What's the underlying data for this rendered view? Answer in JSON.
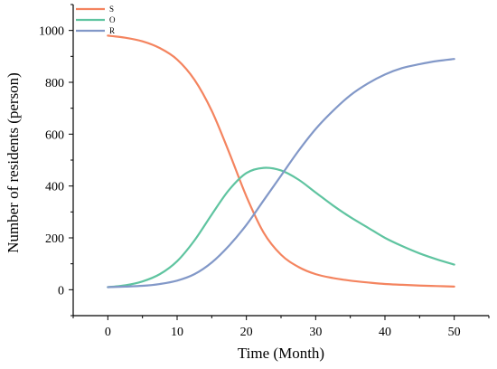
{
  "chart_data": {
    "type": "line",
    "title": "",
    "xlabel": "Time (Month)",
    "ylabel": "Number of residents (person)",
    "xlim": [
      -5,
      55
    ],
    "ylim": [
      -100,
      1100
    ],
    "x_ticks": [
      0,
      10,
      20,
      30,
      40,
      50
    ],
    "y_ticks": [
      0,
      200,
      400,
      600,
      800,
      1000
    ],
    "grid": false,
    "legend_position": "top-left",
    "x": [
      0,
      2.5,
      5,
      7.5,
      10,
      12.5,
      15,
      17.5,
      20,
      22.5,
      25,
      27.5,
      30,
      32.5,
      35,
      37.5,
      40,
      42.5,
      45,
      47.5,
      50
    ],
    "series": [
      {
        "name": "S",
        "color": "#f4845f",
        "values": [
          980,
          972,
          958,
          932,
          888,
          810,
          690,
          530,
          360,
          220,
          135,
          88,
          60,
          45,
          35,
          28,
          22,
          19,
          16,
          14,
          12
        ]
      },
      {
        "name": "O",
        "color": "#5fc4a0",
        "values": [
          10,
          17,
          32,
          60,
          110,
          190,
          290,
          385,
          450,
          470,
          460,
          425,
          375,
          325,
          280,
          240,
          200,
          168,
          140,
          117,
          97
        ]
      },
      {
        "name": "R",
        "color": "#8298c8",
        "values": [
          10,
          12,
          15,
          22,
          35,
          60,
          105,
          170,
          250,
          345,
          440,
          535,
          620,
          690,
          750,
          795,
          830,
          855,
          870,
          882,
          890
        ]
      }
    ]
  }
}
